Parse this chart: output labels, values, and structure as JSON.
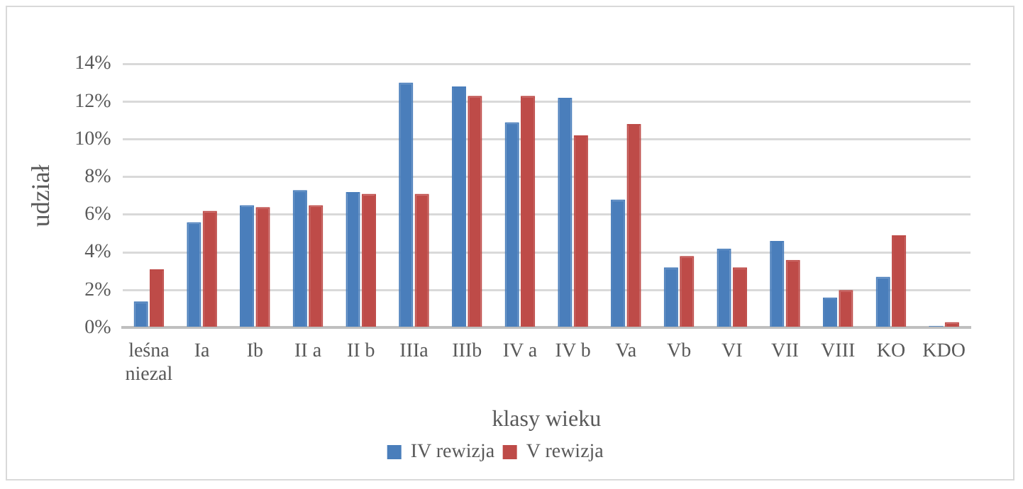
{
  "chart_data": {
    "type": "bar",
    "xlabel": "klasy wieku",
    "ylabel": "udział",
    "categories": [
      "leśna niezal",
      "Ia",
      "Ib",
      "II a",
      "II b",
      "IIIa",
      "IIIb",
      "IV a",
      "IV b",
      "Va",
      "Vb",
      "VI",
      "VII",
      "VIII",
      "KO",
      "KDO"
    ],
    "series": [
      {
        "name": "IV rewizja",
        "color": "#4a7ebb",
        "values": [
          1.4,
          5.6,
          6.5,
          7.3,
          7.2,
          13.0,
          12.8,
          10.9,
          12.2,
          6.8,
          3.2,
          4.2,
          4.6,
          1.6,
          2.7,
          0.1
        ]
      },
      {
        "name": "V rewizja",
        "color": "#be4b48",
        "values": [
          3.1,
          6.2,
          6.4,
          6.5,
          7.1,
          7.1,
          12.3,
          12.3,
          10.2,
          10.8,
          3.8,
          3.2,
          3.6,
          2.0,
          4.9,
          0.3
        ]
      }
    ],
    "ylim": [
      0,
      14
    ],
    "yticks": [
      {
        "value": 0,
        "label": "0%"
      },
      {
        "value": 2,
        "label": "2%"
      },
      {
        "value": 4,
        "label": "4%"
      },
      {
        "value": 6,
        "label": "6%"
      },
      {
        "value": 8,
        "label": "8%"
      },
      {
        "value": 10,
        "label": "10%"
      },
      {
        "value": 12,
        "label": "12%"
      },
      {
        "value": 14,
        "label": "14%"
      }
    ],
    "grid": "y",
    "legend": "bottom"
  }
}
